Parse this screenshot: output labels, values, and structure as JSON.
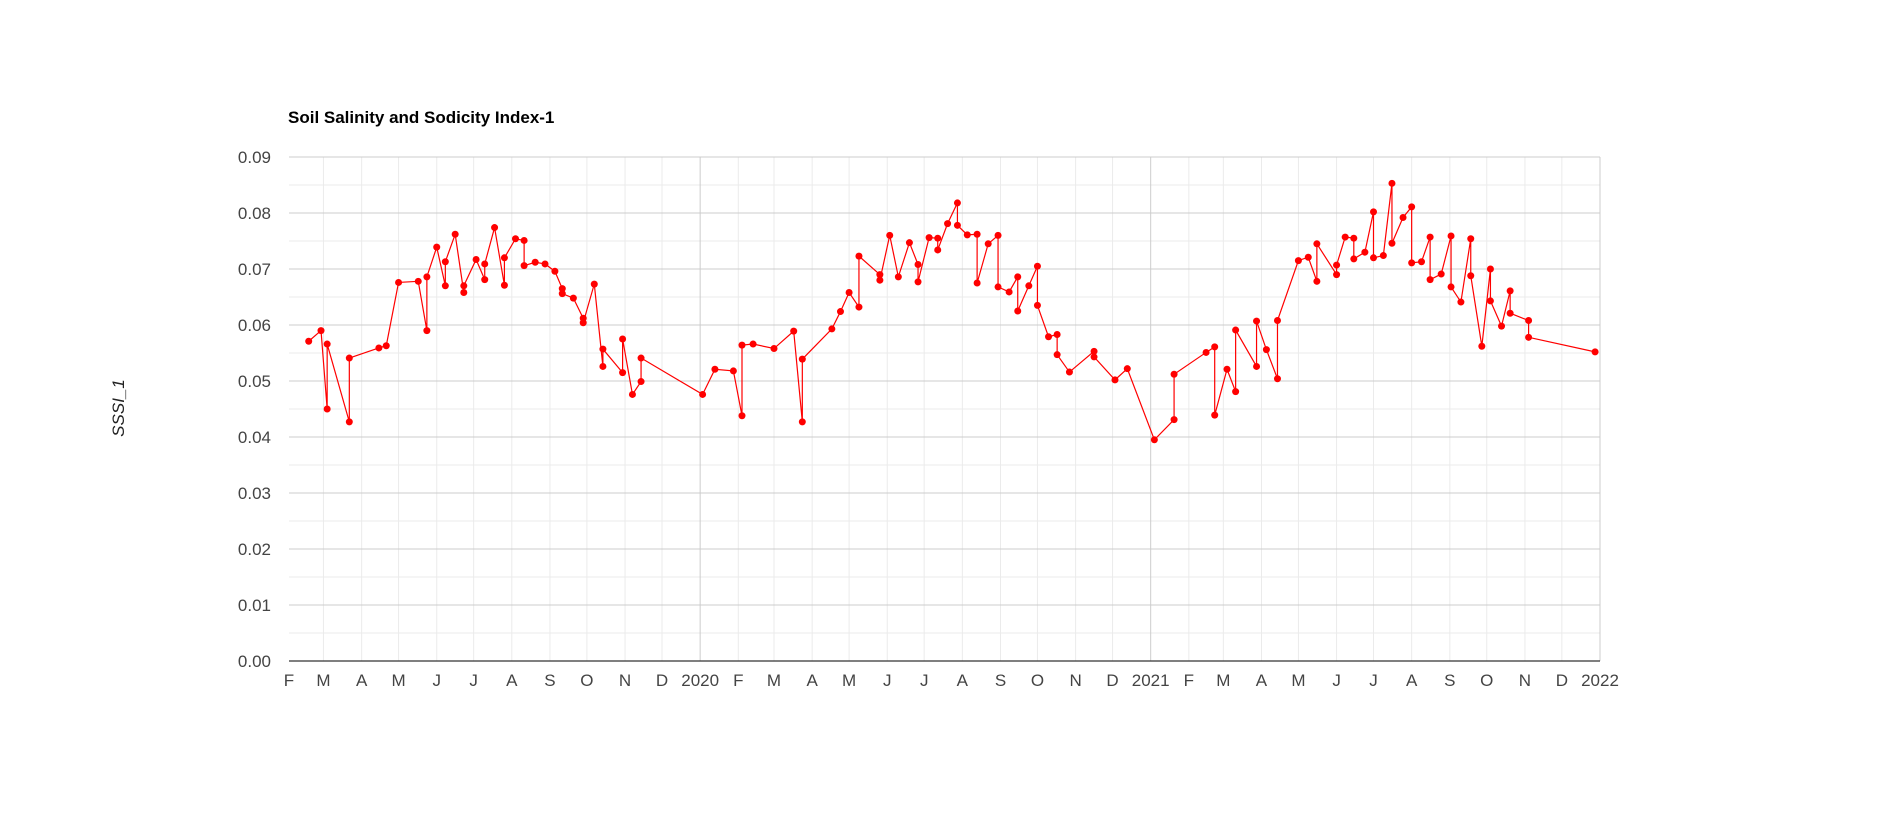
{
  "chart_data": {
    "type": "line",
    "title": "Soil Salinity and Sodicity Index-1",
    "ylabel": "SSSI_1",
    "xlabel": "",
    "ylim": [
      0,
      0.09
    ],
    "xlim": [
      "2019-02-01",
      "2022-01-01"
    ],
    "y_ticks": [
      "0.00",
      "0.01",
      "0.02",
      "0.03",
      "0.04",
      "0.05",
      "0.06",
      "0.07",
      "0.08",
      "0.09"
    ],
    "x_ticks": [
      {
        "date": "2019-02-01",
        "label": "F"
      },
      {
        "date": "2019-03-01",
        "label": "M"
      },
      {
        "date": "2019-04-01",
        "label": "A"
      },
      {
        "date": "2019-05-01",
        "label": "M"
      },
      {
        "date": "2019-06-01",
        "label": "J"
      },
      {
        "date": "2019-07-01",
        "label": "J"
      },
      {
        "date": "2019-08-01",
        "label": "A"
      },
      {
        "date": "2019-09-01",
        "label": "S"
      },
      {
        "date": "2019-10-01",
        "label": "O"
      },
      {
        "date": "2019-11-01",
        "label": "N"
      },
      {
        "date": "2019-12-01",
        "label": "D"
      },
      {
        "date": "2020-01-01",
        "label": "2020"
      },
      {
        "date": "2020-02-01",
        "label": "F"
      },
      {
        "date": "2020-03-01",
        "label": "M"
      },
      {
        "date": "2020-04-01",
        "label": "A"
      },
      {
        "date": "2020-05-01",
        "label": "M"
      },
      {
        "date": "2020-06-01",
        "label": "J"
      },
      {
        "date": "2020-07-01",
        "label": "J"
      },
      {
        "date": "2020-08-01",
        "label": "A"
      },
      {
        "date": "2020-09-01",
        "label": "S"
      },
      {
        "date": "2020-10-01",
        "label": "O"
      },
      {
        "date": "2020-11-01",
        "label": "N"
      },
      {
        "date": "2020-12-01",
        "label": "D"
      },
      {
        "date": "2021-01-01",
        "label": "2021"
      },
      {
        "date": "2021-02-01",
        "label": "F"
      },
      {
        "date": "2021-03-01",
        "label": "M"
      },
      {
        "date": "2021-04-01",
        "label": "A"
      },
      {
        "date": "2021-05-01",
        "label": "M"
      },
      {
        "date": "2021-06-01",
        "label": "J"
      },
      {
        "date": "2021-07-01",
        "label": "J"
      },
      {
        "date": "2021-08-01",
        "label": "A"
      },
      {
        "date": "2021-09-01",
        "label": "S"
      },
      {
        "date": "2021-10-01",
        "label": "O"
      },
      {
        "date": "2021-11-01",
        "label": "N"
      },
      {
        "date": "2021-12-01",
        "label": "D"
      },
      {
        "date": "2022-01-01",
        "label": "2022"
      }
    ],
    "grid": true,
    "legend": "none",
    "series": [
      {
        "color": "#ff0000",
        "points": [
          [
            "2019-02-17",
            0.0571
          ],
          [
            "2019-02-27",
            0.059
          ],
          [
            "2019-03-04",
            0.045
          ],
          [
            "2019-03-04",
            0.0566
          ],
          [
            "2019-03-22",
            0.0427
          ],
          [
            "2019-03-22",
            0.0541
          ],
          [
            "2019-04-15",
            0.0559
          ],
          [
            "2019-04-21",
            0.0563
          ],
          [
            "2019-05-01",
            0.0676
          ],
          [
            "2019-05-17",
            0.0678
          ],
          [
            "2019-05-24",
            0.059
          ],
          [
            "2019-05-24",
            0.0686
          ],
          [
            "2019-06-01",
            0.0739
          ],
          [
            "2019-06-08",
            0.067
          ],
          [
            "2019-06-08",
            0.0713
          ],
          [
            "2019-06-16",
            0.0762
          ],
          [
            "2019-06-23",
            0.0658
          ],
          [
            "2019-06-23",
            0.067
          ],
          [
            "2019-07-03",
            0.0717
          ],
          [
            "2019-07-10",
            0.0681
          ],
          [
            "2019-07-10",
            0.0709
          ],
          [
            "2019-07-18",
            0.0774
          ],
          [
            "2019-07-26",
            0.0671
          ],
          [
            "2019-07-26",
            0.072
          ],
          [
            "2019-08-04",
            0.0754
          ],
          [
            "2019-08-11",
            0.0751
          ],
          [
            "2019-08-11",
            0.0706
          ],
          [
            "2019-08-20",
            0.0712
          ],
          [
            "2019-08-28",
            0.0709
          ],
          [
            "2019-09-05",
            0.0696
          ],
          [
            "2019-09-11",
            0.0665
          ],
          [
            "2019-09-11",
            0.0656
          ],
          [
            "2019-09-20",
            0.0648
          ],
          [
            "2019-09-28",
            0.0612
          ],
          [
            "2019-09-28",
            0.0604
          ],
          [
            "2019-10-07",
            0.0673
          ],
          [
            "2019-10-14",
            0.0526
          ],
          [
            "2019-10-14",
            0.0557
          ],
          [
            "2019-10-30",
            0.0515
          ],
          [
            "2019-10-30",
            0.0575
          ],
          [
            "2019-11-07",
            0.0476
          ],
          [
            "2019-11-14",
            0.0499
          ],
          [
            "2019-11-14",
            0.0541
          ],
          [
            "2020-01-03",
            0.0476
          ],
          [
            "2020-01-13",
            0.0521
          ],
          [
            "2020-01-28",
            0.0518
          ],
          [
            "2020-02-04",
            0.0438
          ],
          [
            "2020-02-04",
            0.0564
          ],
          [
            "2020-02-13",
            0.0566
          ],
          [
            "2020-03-01",
            0.0558
          ],
          [
            "2020-03-17",
            0.0589
          ],
          [
            "2020-03-24",
            0.0427
          ],
          [
            "2020-03-24",
            0.0539
          ],
          [
            "2020-04-17",
            0.0593
          ],
          [
            "2020-04-24",
            0.0624
          ],
          [
            "2020-05-01",
            0.0658
          ],
          [
            "2020-05-09",
            0.0632
          ],
          [
            "2020-05-09",
            0.0723
          ],
          [
            "2020-05-26",
            0.069
          ],
          [
            "2020-05-26",
            0.068
          ],
          [
            "2020-06-03",
            0.076
          ],
          [
            "2020-06-10",
            0.0686
          ],
          [
            "2020-06-19",
            0.0747
          ],
          [
            "2020-06-26",
            0.0708
          ],
          [
            "2020-06-26",
            0.0677
          ],
          [
            "2020-07-05",
            0.0756
          ],
          [
            "2020-07-12",
            0.0755
          ],
          [
            "2020-07-12",
            0.0734
          ],
          [
            "2020-07-20",
            0.0781
          ],
          [
            "2020-07-28",
            0.0818
          ],
          [
            "2020-07-28",
            0.0778
          ],
          [
            "2020-08-05",
            0.0761
          ],
          [
            "2020-08-13",
            0.0762
          ],
          [
            "2020-08-13",
            0.0675
          ],
          [
            "2020-08-22",
            0.0745
          ],
          [
            "2020-08-30",
            0.076
          ],
          [
            "2020-08-30",
            0.0668
          ],
          [
            "2020-09-08",
            0.0659
          ],
          [
            "2020-09-15",
            0.0686
          ],
          [
            "2020-09-15",
            0.0625
          ],
          [
            "2020-09-24",
            0.067
          ],
          [
            "2020-10-01",
            0.0705
          ],
          [
            "2020-10-01",
            0.0635
          ],
          [
            "2020-10-10",
            0.0579
          ],
          [
            "2020-10-17",
            0.0583
          ],
          [
            "2020-10-17",
            0.0547
          ],
          [
            "2020-10-27",
            0.0516
          ],
          [
            "2020-11-16",
            0.0553
          ],
          [
            "2020-11-16",
            0.0543
          ],
          [
            "2020-12-03",
            0.0502
          ],
          [
            "2020-12-13",
            0.0522
          ],
          [
            "2021-01-04",
            0.0395
          ],
          [
            "2021-01-20",
            0.0431
          ],
          [
            "2021-01-20",
            0.0512
          ],
          [
            "2021-02-15",
            0.0551
          ],
          [
            "2021-02-22",
            0.0561
          ],
          [
            "2021-02-22",
            0.0439
          ],
          [
            "2021-03-04",
            0.0521
          ],
          [
            "2021-03-11",
            0.0481
          ],
          [
            "2021-03-11",
            0.0591
          ],
          [
            "2021-03-28",
            0.0526
          ],
          [
            "2021-03-28",
            0.0607
          ],
          [
            "2021-04-05",
            0.0556
          ],
          [
            "2021-04-14",
            0.0504
          ],
          [
            "2021-04-14",
            0.0608
          ],
          [
            "2021-05-01",
            0.0715
          ],
          [
            "2021-05-09",
            0.0721
          ],
          [
            "2021-05-16",
            0.0678
          ],
          [
            "2021-05-16",
            0.0745
          ],
          [
            "2021-06-01",
            0.069
          ],
          [
            "2021-06-01",
            0.0707
          ],
          [
            "2021-06-08",
            0.0757
          ],
          [
            "2021-06-15",
            0.0755
          ],
          [
            "2021-06-15",
            0.0718
          ],
          [
            "2021-06-24",
            0.073
          ],
          [
            "2021-07-01",
            0.0802
          ],
          [
            "2021-07-01",
            0.072
          ],
          [
            "2021-07-09",
            0.0724
          ],
          [
            "2021-07-16",
            0.0853
          ],
          [
            "2021-07-16",
            0.0746
          ],
          [
            "2021-07-25",
            0.0792
          ],
          [
            "2021-08-01",
            0.0811
          ],
          [
            "2021-08-01",
            0.0711
          ],
          [
            "2021-08-09",
            0.0713
          ],
          [
            "2021-08-16",
            0.0757
          ],
          [
            "2021-08-16",
            0.0681
          ],
          [
            "2021-08-25",
            0.0691
          ],
          [
            "2021-09-02",
            0.0759
          ],
          [
            "2021-09-02",
            0.0668
          ],
          [
            "2021-09-10",
            0.0641
          ],
          [
            "2021-09-18",
            0.0754
          ],
          [
            "2021-09-18",
            0.0688
          ],
          [
            "2021-09-27",
            0.0562
          ],
          [
            "2021-10-04",
            0.07
          ],
          [
            "2021-10-04",
            0.0643
          ],
          [
            "2021-10-13",
            0.0598
          ],
          [
            "2021-10-20",
            0.0661
          ],
          [
            "2021-10-20",
            0.0621
          ],
          [
            "2021-11-04",
            0.0608
          ],
          [
            "2021-11-04",
            0.0578
          ],
          [
            "2021-12-28",
            0.0552
          ]
        ]
      }
    ]
  }
}
